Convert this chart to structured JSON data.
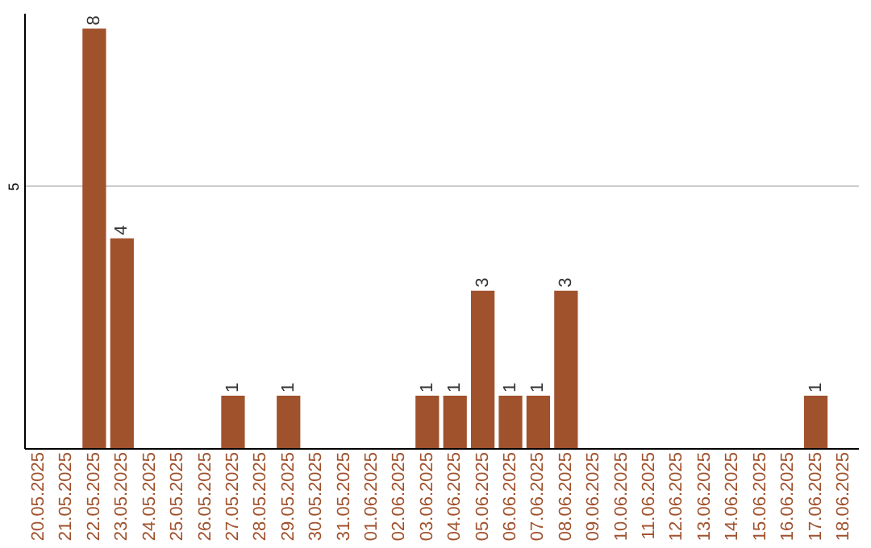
{
  "chart_data": {
    "type": "bar",
    "categories": [
      "20.05.2025",
      "21.05.2025",
      "22.05.2025",
      "23.05.2025",
      "24.05.2025",
      "25.05.2025",
      "26.05.2025",
      "27.05.2025",
      "28.05.2025",
      "29.05.2025",
      "30.05.2025",
      "31.05.2025",
      "01.06.2025",
      "02.06.2025",
      "03.06.2025",
      "04.06.2025",
      "05.06.2025",
      "06.06.2025",
      "07.06.2025",
      "08.06.2025",
      "09.06.2025",
      "10.06.2025",
      "11.06.2025",
      "12.06.2025",
      "13.06.2025",
      "14.06.2025",
      "15.06.2025",
      "16.06.2025",
      "17.06.2025",
      "18.06.2025"
    ],
    "values": [
      0,
      0,
      8,
      4,
      0,
      0,
      0,
      1,
      0,
      1,
      0,
      0,
      0,
      0,
      1,
      1,
      3,
      1,
      1,
      3,
      0,
      0,
      0,
      0,
      0,
      0,
      0,
      0,
      1,
      0
    ],
    "value_labels": [
      null,
      null,
      "8",
      "4",
      null,
      null,
      null,
      "1",
      null,
      "1",
      null,
      null,
      null,
      null,
      "1",
      "1",
      "3",
      "1",
      "1",
      "3",
      null,
      null,
      null,
      null,
      null,
      null,
      null,
      null,
      "1",
      null
    ],
    "color": "#a0522d",
    "ylim": [
      0,
      8.3
    ],
    "yticks": [
      5
    ],
    "grid": "y"
  }
}
